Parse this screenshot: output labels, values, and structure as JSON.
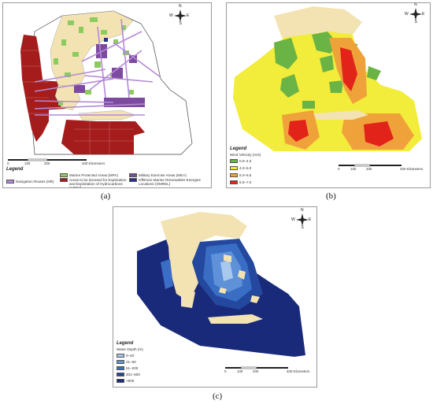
{
  "captions": {
    "a": "(a)",
    "b": "(b)",
    "c": "(c)"
  },
  "compass": {
    "n": "N",
    "s": "S",
    "e": "E",
    "w": "W"
  },
  "scale": {
    "ticks": [
      "0",
      "100",
      "200",
      "400 Kilometers"
    ]
  },
  "panel_a": {
    "legend_title": "Legend",
    "items": [
      {
        "label": "Navigation Routes (NR)",
        "color": "#b48ad6"
      },
      {
        "label": "Marine Protected Areas (MPA)",
        "color": "#8ccc5f"
      },
      {
        "label": "Areas to be licensed for Exploration and Exploitation of Hydrocarbons (AEEH)",
        "color": "#a51c1c"
      },
      {
        "label": "Military Exercise Areas (MEA)",
        "color": "#7c4ba0"
      },
      {
        "label": "Offshore Marine Renewables Energies Locations (OMREL)",
        "color": "#27318a"
      }
    ]
  },
  "panel_b": {
    "legend_title": "Legend",
    "legend_subtitle": "Wind Velocity (m/s)",
    "items": [
      {
        "label": "0.0–4.0",
        "color": "#6ab446"
      },
      {
        "label": "4.0–6.0",
        "color": "#f2ec3a"
      },
      {
        "label": "6.0–6.5",
        "color": "#f0a23a"
      },
      {
        "label": "6.5–7.0",
        "color": "#e2231a"
      }
    ]
  },
  "panel_c": {
    "legend_title": "Legend",
    "legend_subtitle": "Water Depth (m)",
    "items": [
      {
        "label": "0–20",
        "color": "#a9c8ee"
      },
      {
        "label": "21–60",
        "color": "#5e91d8"
      },
      {
        "label": "61–200",
        "color": "#3a6ec5"
      },
      {
        "label": "201–500",
        "color": "#24489e"
      },
      {
        "label": ">500",
        "color": "#1a2a7a"
      }
    ]
  },
  "colors": {
    "land": "#f3e3b3",
    "frame": "#9a9a9a"
  }
}
